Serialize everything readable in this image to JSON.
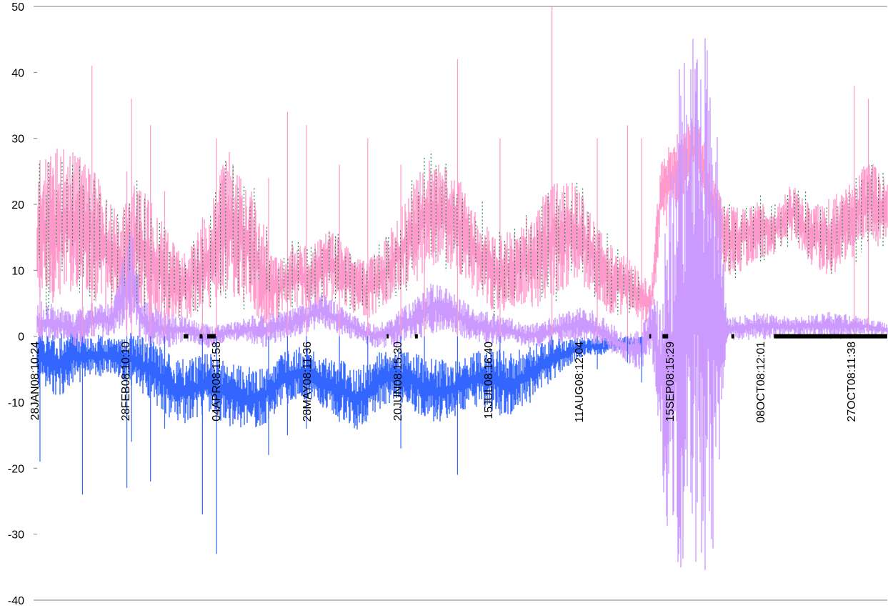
{
  "chart_data": {
    "type": "line",
    "title": "",
    "xlabel": "",
    "ylabel": "",
    "ylim": [
      -40,
      50
    ],
    "yticks": [
      -40,
      -30,
      -20,
      -10,
      0,
      10,
      20,
      30,
      40,
      50
    ],
    "grid": false,
    "legend": "none",
    "x_tick_labels": [
      "28JAN08:10:24",
      "28FEB08:10:10",
      "04APR08:11:58",
      "28MAY08:11:36",
      "20JUN08:15:30",
      "15JUL08:16:40",
      "11AUG08:12:04",
      "15SEP08:15:29",
      "08OCT08:12:01",
      "27OCT08:11:38"
    ],
    "series": [
      {
        "color": "#ff99cc",
        "envelope": [
          [
            0,
            2,
            28
          ],
          [
            20,
            4,
            30
          ],
          [
            45,
            6,
            29
          ],
          [
            70,
            3,
            25
          ],
          [
            90,
            1,
            20
          ],
          [
            105,
            3,
            26
          ],
          [
            120,
            2,
            22
          ],
          [
            140,
            1,
            16
          ],
          [
            160,
            2,
            14
          ],
          [
            180,
            3,
            20
          ],
          [
            200,
            5,
            30
          ],
          [
            220,
            3,
            26
          ],
          [
            240,
            1,
            18
          ],
          [
            255,
            2,
            12
          ],
          [
            270,
            4,
            15
          ],
          [
            290,
            3,
            14
          ],
          [
            310,
            5,
            17
          ],
          [
            330,
            3,
            14
          ],
          [
            350,
            2,
            12
          ],
          [
            370,
            4,
            16
          ],
          [
            390,
            6,
            22
          ],
          [
            410,
            8,
            28
          ],
          [
            430,
            10,
            27
          ],
          [
            450,
            8,
            24
          ],
          [
            470,
            4,
            20
          ],
          [
            490,
            2,
            16
          ],
          [
            510,
            4,
            18
          ],
          [
            530,
            3,
            21
          ],
          [
            550,
            5,
            26
          ],
          [
            570,
            8,
            24
          ],
          [
            590,
            5,
            19
          ],
          [
            610,
            2,
            14
          ],
          [
            630,
            3,
            12
          ],
          [
            650,
            1,
            8
          ],
          [
            660,
            14,
            28
          ],
          [
            680,
            20,
            32
          ],
          [
            700,
            24,
            34
          ],
          [
            715,
            15,
            25
          ],
          [
            730,
            8,
            20
          ],
          [
            755,
            10,
            22
          ],
          [
            780,
            12,
            20
          ],
          [
            800,
            14,
            24
          ],
          [
            820,
            10,
            20
          ],
          [
            840,
            8,
            22
          ],
          [
            860,
            10,
            24
          ],
          [
            880,
            14,
            28
          ],
          [
            900,
            12,
            24
          ]
        ]
      },
      {
        "color": "#cc99ff",
        "envelope": [
          [
            0,
            -2,
            6
          ],
          [
            20,
            -1,
            5
          ],
          [
            40,
            -2,
            4
          ],
          [
            60,
            -1,
            6
          ],
          [
            80,
            0,
            5
          ],
          [
            100,
            0,
            18
          ],
          [
            110,
            -1,
            7
          ],
          [
            120,
            -2,
            5
          ],
          [
            140,
            -2,
            4
          ],
          [
            160,
            -1,
            3
          ],
          [
            180,
            -2,
            2
          ],
          [
            200,
            -1,
            2
          ],
          [
            220,
            -1,
            3
          ],
          [
            240,
            -2,
            4
          ],
          [
            260,
            -1,
            4
          ],
          [
            280,
            0,
            5
          ],
          [
            300,
            1,
            7
          ],
          [
            320,
            0,
            5
          ],
          [
            340,
            -1,
            3
          ],
          [
            360,
            -2,
            2
          ],
          [
            380,
            -2,
            4
          ],
          [
            400,
            -1,
            6
          ],
          [
            420,
            0,
            9
          ],
          [
            440,
            0,
            7
          ],
          [
            460,
            -1,
            5
          ],
          [
            480,
            -2,
            4
          ],
          [
            500,
            -1,
            3
          ],
          [
            520,
            -2,
            2
          ],
          [
            540,
            -2,
            3
          ],
          [
            560,
            -1,
            4
          ],
          [
            580,
            -1,
            5
          ],
          [
            600,
            -2,
            3
          ],
          [
            610,
            -3,
            2
          ],
          [
            620,
            -4,
            1
          ],
          [
            640,
            -6,
            2
          ],
          [
            650,
            -3,
            6
          ],
          [
            660,
            -20,
            10
          ],
          [
            670,
            -40,
            30
          ],
          [
            680,
            -40,
            45
          ],
          [
            690,
            -40,
            50
          ],
          [
            700,
            -40,
            50
          ],
          [
            715,
            -40,
            50
          ],
          [
            730,
            -1,
            3
          ],
          [
            760,
            -1,
            4
          ],
          [
            800,
            0,
            3
          ],
          [
            840,
            -1,
            4
          ],
          [
            880,
            0,
            3
          ],
          [
            900,
            0,
            2
          ]
        ]
      },
      {
        "color": "#3366ff",
        "envelope": [
          [
            0,
            -8,
            2
          ],
          [
            20,
            -10,
            1
          ],
          [
            40,
            -8,
            2
          ],
          [
            60,
            -7,
            1
          ],
          [
            80,
            -6,
            0
          ],
          [
            100,
            -8,
            1
          ],
          [
            120,
            -10,
            0
          ],
          [
            140,
            -13,
            -2
          ],
          [
            160,
            -14,
            -3
          ],
          [
            180,
            -12,
            -2
          ],
          [
            200,
            -14,
            -3
          ],
          [
            220,
            -15,
            -4
          ],
          [
            240,
            -14,
            -4
          ],
          [
            260,
            -11,
            -2
          ],
          [
            280,
            -10,
            -1
          ],
          [
            300,
            -11,
            -2
          ],
          [
            320,
            -13,
            -3
          ],
          [
            340,
            -15,
            -4
          ],
          [
            360,
            -12,
            -2
          ],
          [
            380,
            -10,
            -1
          ],
          [
            400,
            -12,
            -2
          ],
          [
            420,
            -14,
            -3
          ],
          [
            440,
            -13,
            -3
          ],
          [
            460,
            -11,
            -2
          ],
          [
            480,
            -12,
            -1
          ],
          [
            500,
            -13,
            -2
          ],
          [
            520,
            -11,
            -1
          ],
          [
            540,
            -8,
            0
          ],
          [
            560,
            -5,
            0
          ],
          [
            580,
            -3,
            0
          ],
          [
            600,
            -3,
            0
          ],
          [
            620,
            -2,
            0
          ],
          [
            640,
            -2,
            0
          ]
        ]
      }
    ],
    "spikes": [
      [
        3,
        -19,
        8
      ],
      [
        48,
        -24,
        12
      ],
      [
        58,
        2,
        41
      ],
      [
        95,
        -23,
        25
      ],
      [
        100,
        -16,
        36
      ],
      [
        120,
        -22,
        32
      ],
      [
        135,
        -14,
        22
      ],
      [
        175,
        -27,
        18
      ],
      [
        190,
        -33,
        30
      ],
      [
        245,
        -18,
        24
      ],
      [
        265,
        -15,
        34
      ],
      [
        285,
        -14,
        32
      ],
      [
        320,
        -13,
        26
      ],
      [
        350,
        -12,
        30
      ],
      [
        385,
        -17,
        26
      ],
      [
        410,
        -12,
        22
      ],
      [
        445,
        -21,
        42
      ],
      [
        490,
        -12,
        30
      ],
      [
        545,
        -3,
        50
      ],
      [
        593,
        -5,
        30
      ],
      [
        625,
        -4,
        32
      ],
      [
        640,
        -7,
        30
      ],
      [
        865,
        2,
        38
      ],
      [
        880,
        3,
        36
      ]
    ],
    "dark_marker_segments": [
      [
        155,
        160
      ],
      [
        172,
        175
      ],
      [
        180,
        189
      ],
      [
        370,
        372
      ],
      [
        400,
        403
      ],
      [
        648,
        650
      ],
      [
        662,
        668
      ],
      [
        735,
        738
      ],
      [
        780,
        900
      ]
    ]
  }
}
